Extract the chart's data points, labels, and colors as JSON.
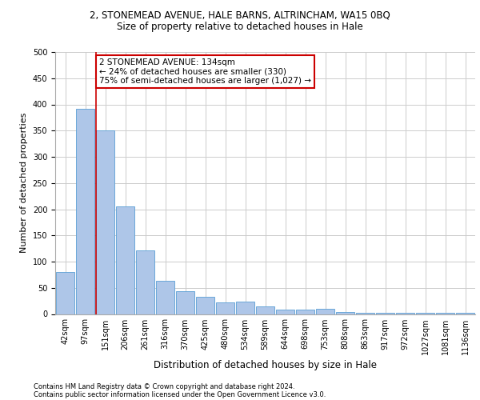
{
  "title_line1": "2, STONEMEAD AVENUE, HALE BARNS, ALTRINCHAM, WA15 0BQ",
  "title_line2": "Size of property relative to detached houses in Hale",
  "xlabel": "Distribution of detached houses by size in Hale",
  "ylabel": "Number of detached properties",
  "categories": [
    "42sqm",
    "97sqm",
    "151sqm",
    "206sqm",
    "261sqm",
    "316sqm",
    "370sqm",
    "425sqm",
    "480sqm",
    "534sqm",
    "589sqm",
    "644sqm",
    "698sqm",
    "753sqm",
    "808sqm",
    "863sqm",
    "917sqm",
    "972sqm",
    "1027sqm",
    "1081sqm",
    "1136sqm"
  ],
  "values": [
    80,
    392,
    350,
    205,
    122,
    64,
    44,
    33,
    22,
    24,
    14,
    9,
    9,
    10,
    4,
    3,
    2,
    2,
    2,
    2,
    2
  ],
  "bar_color": "#aec6e8",
  "bar_edge_color": "#5a9fd4",
  "highlight_bar_index": 2,
  "highlight_bar_edge_color": "#cc0000",
  "annotation_text": "2 STONEMEAD AVENUE: 134sqm\n← 24% of detached houses are smaller (330)\n75% of semi-detached houses are larger (1,027) →",
  "annotation_box_color": "#ffffff",
  "annotation_box_edge_color": "#cc0000",
  "ylim": [
    0,
    500
  ],
  "yticks": [
    0,
    50,
    100,
    150,
    200,
    250,
    300,
    350,
    400,
    450,
    500
  ],
  "footer_line1": "Contains HM Land Registry data © Crown copyright and database right 2024.",
  "footer_line2": "Contains public sector information licensed under the Open Government Licence v3.0.",
  "bg_color": "#ffffff",
  "grid_color": "#cccccc",
  "title1_fontsize": 8.5,
  "title2_fontsize": 8.5,
  "ylabel_fontsize": 8,
  "xlabel_fontsize": 8.5,
  "tick_fontsize": 7,
  "annotation_fontsize": 7.5,
  "footer_fontsize": 6.0
}
